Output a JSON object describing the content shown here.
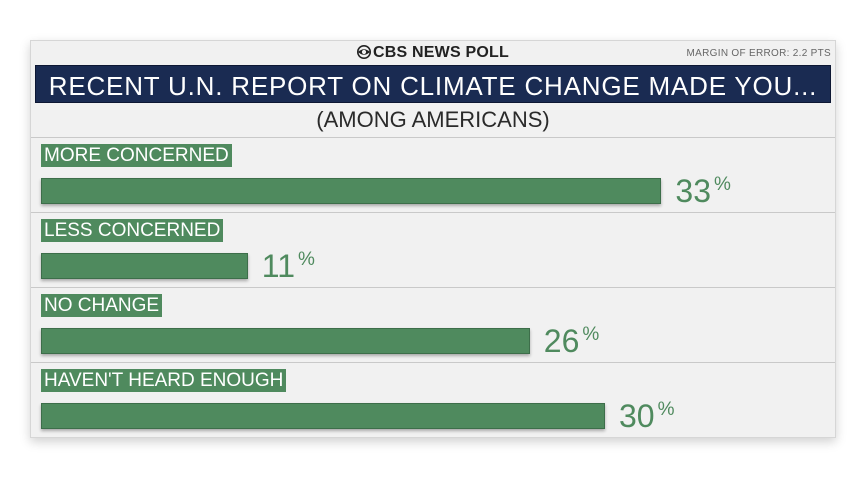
{
  "header": {
    "brand": "CBS NEWS POLL",
    "brand_icon": "cbs-eye-icon",
    "margin_of_error": "MARGIN OF ERROR: 2.2 PTS"
  },
  "colors": {
    "bar": "#4f8a5e",
    "title_bg": "#1a2b52",
    "panel_bg": "#f1f1f1"
  },
  "chart_data": {
    "type": "bar",
    "orientation": "horizontal",
    "title": "RECENT U.N. REPORT ON CLIMATE CHANGE MADE YOU...",
    "subtitle": "(AMONG AMERICANS)",
    "categories": [
      "MORE CONCERNED",
      "LESS CONCERNED",
      "NO CHANGE",
      "HAVEN'T HEARD ENOUGH"
    ],
    "values": [
      33,
      11,
      26,
      30
    ],
    "value_labels": [
      "33",
      "11",
      "26",
      "30"
    ],
    "unit": "%",
    "xlim": [
      0,
      42
    ],
    "grid": false,
    "legend": "none"
  }
}
